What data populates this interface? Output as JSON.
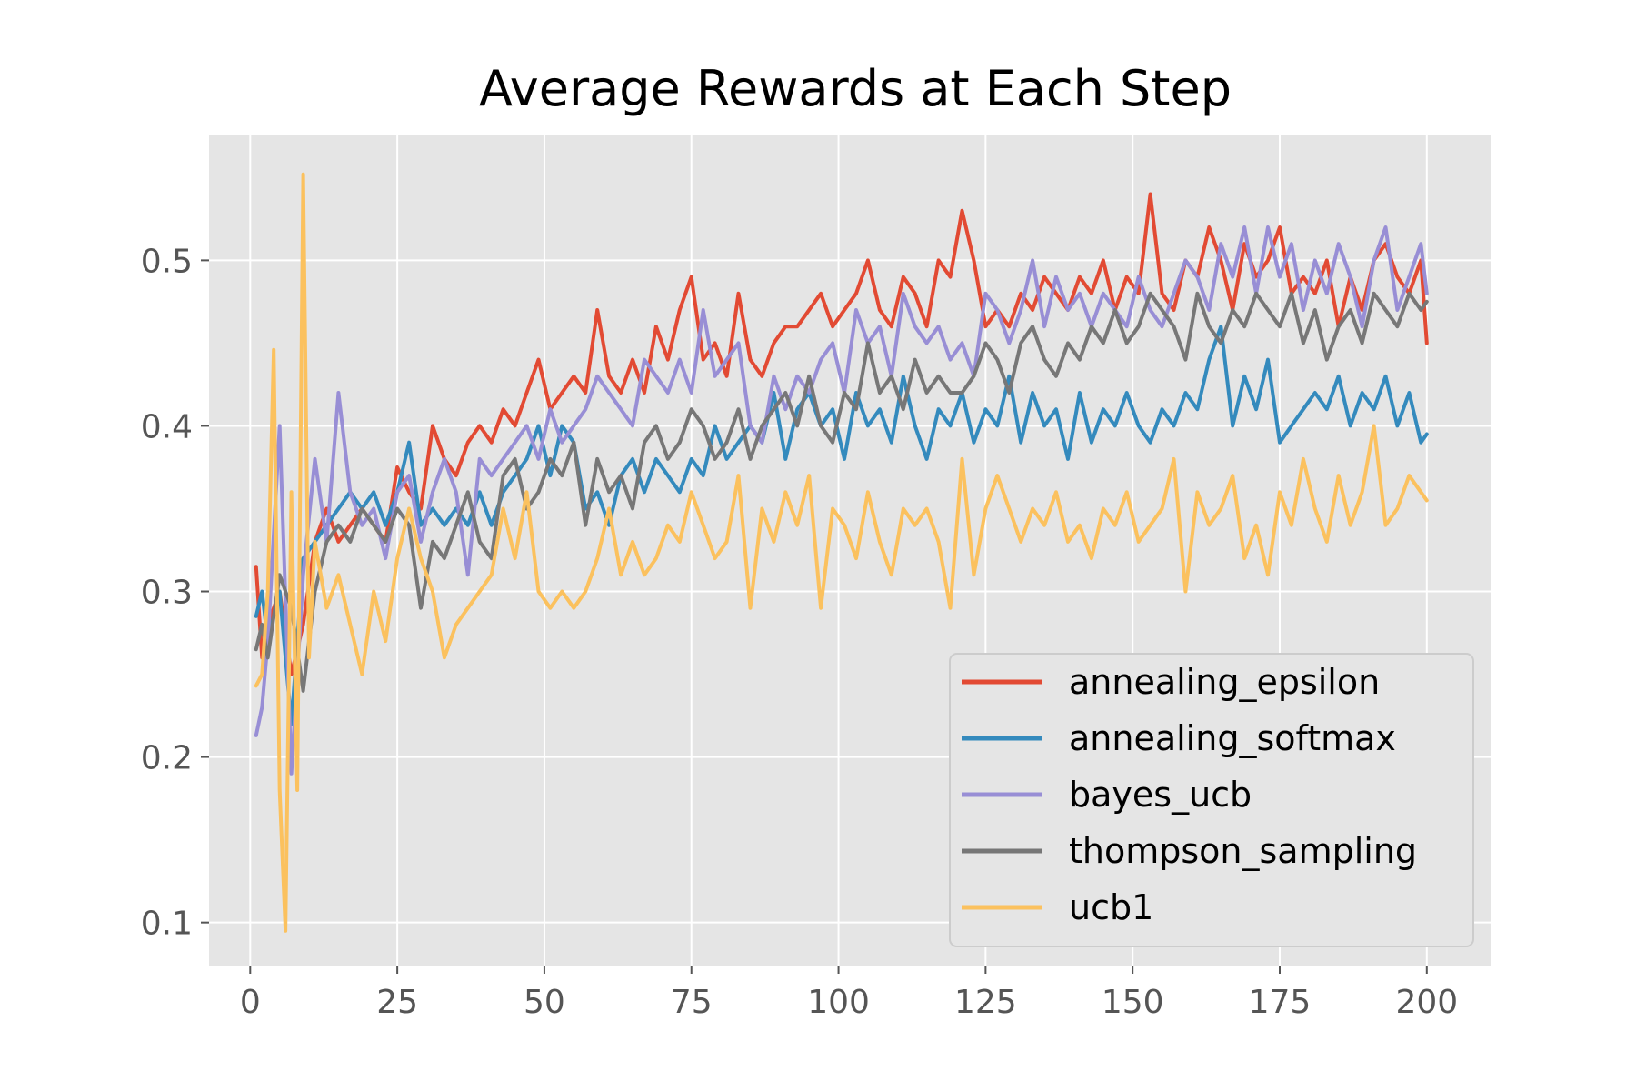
{
  "chart_data": {
    "type": "line",
    "title": "Average Rewards at Each Step",
    "xlabel": "",
    "ylabel": "",
    "xlim": [
      -7,
      211
    ],
    "ylim": [
      0.074,
      0.576
    ],
    "xticks": [
      0,
      25,
      50,
      75,
      100,
      125,
      150,
      175,
      200
    ],
    "yticks": [
      0.1,
      0.2,
      0.3,
      0.4,
      0.5
    ],
    "xtick_labels": [
      "0",
      "25",
      "50",
      "75",
      "100",
      "125",
      "150",
      "175",
      "200"
    ],
    "ytick_labels": [
      "0.1",
      "0.2",
      "0.3",
      "0.4",
      "0.5"
    ],
    "grid": true,
    "legend_position": "lower-right",
    "background": "#e5e5e5",
    "series": [
      {
        "name": "annealing_epsilon",
        "color": "#e24a33",
        "x": [
          1,
          2,
          3,
          5,
          7,
          9,
          11,
          13,
          15,
          17,
          19,
          21,
          23,
          25,
          27,
          29,
          31,
          33,
          35,
          37,
          39,
          41,
          43,
          45,
          47,
          49,
          51,
          53,
          55,
          57,
          59,
          61,
          63,
          65,
          67,
          69,
          71,
          73,
          75,
          77,
          79,
          81,
          83,
          85,
          87,
          89,
          91,
          93,
          95,
          97,
          99,
          101,
          103,
          105,
          107,
          109,
          111,
          113,
          115,
          117,
          119,
          121,
          123,
          125,
          127,
          129,
          131,
          133,
          135,
          137,
          139,
          141,
          143,
          145,
          147,
          149,
          151,
          153,
          155,
          157,
          159,
          161,
          163,
          165,
          167,
          169,
          171,
          173,
          175,
          177,
          179,
          181,
          183,
          185,
          187,
          189,
          191,
          193,
          195,
          197,
          199,
          200
        ],
        "values": [
          0.315,
          0.26,
          0.28,
          0.3,
          0.25,
          0.28,
          0.33,
          0.35,
          0.33,
          0.34,
          0.35,
          0.34,
          0.33,
          0.375,
          0.36,
          0.35,
          0.4,
          0.38,
          0.37,
          0.39,
          0.4,
          0.39,
          0.41,
          0.4,
          0.42,
          0.44,
          0.41,
          0.42,
          0.43,
          0.42,
          0.47,
          0.43,
          0.42,
          0.44,
          0.42,
          0.46,
          0.44,
          0.47,
          0.49,
          0.44,
          0.45,
          0.43,
          0.48,
          0.44,
          0.43,
          0.45,
          0.46,
          0.46,
          0.47,
          0.48,
          0.46,
          0.47,
          0.48,
          0.5,
          0.47,
          0.46,
          0.49,
          0.48,
          0.46,
          0.5,
          0.49,
          0.53,
          0.5,
          0.46,
          0.47,
          0.46,
          0.48,
          0.47,
          0.49,
          0.48,
          0.47,
          0.49,
          0.48,
          0.5,
          0.47,
          0.49,
          0.48,
          0.54,
          0.48,
          0.47,
          0.5,
          0.49,
          0.52,
          0.5,
          0.47,
          0.51,
          0.49,
          0.5,
          0.52,
          0.48,
          0.49,
          0.48,
          0.5,
          0.46,
          0.49,
          0.47,
          0.5,
          0.51,
          0.49,
          0.48,
          0.5,
          0.45
        ]
      },
      {
        "name": "annealing_softmax",
        "color": "#348abd",
        "x": [
          1,
          2,
          3,
          5,
          7,
          9,
          11,
          13,
          15,
          17,
          19,
          21,
          23,
          25,
          27,
          29,
          31,
          33,
          35,
          37,
          39,
          41,
          43,
          45,
          47,
          49,
          51,
          53,
          55,
          57,
          59,
          61,
          63,
          65,
          67,
          69,
          71,
          73,
          75,
          77,
          79,
          81,
          83,
          85,
          87,
          89,
          91,
          93,
          95,
          97,
          99,
          101,
          103,
          105,
          107,
          109,
          111,
          113,
          115,
          117,
          119,
          121,
          123,
          125,
          127,
          129,
          131,
          133,
          135,
          137,
          139,
          141,
          143,
          145,
          147,
          149,
          151,
          153,
          155,
          157,
          159,
          161,
          163,
          165,
          167,
          169,
          171,
          173,
          175,
          177,
          179,
          181,
          183,
          185,
          187,
          189,
          191,
          193,
          195,
          197,
          199,
          200
        ],
        "values": [
          0.285,
          0.3,
          0.27,
          0.3,
          0.22,
          0.32,
          0.33,
          0.34,
          0.35,
          0.36,
          0.35,
          0.36,
          0.34,
          0.36,
          0.39,
          0.34,
          0.35,
          0.34,
          0.35,
          0.34,
          0.36,
          0.34,
          0.36,
          0.37,
          0.38,
          0.4,
          0.37,
          0.4,
          0.39,
          0.35,
          0.36,
          0.34,
          0.37,
          0.38,
          0.36,
          0.38,
          0.37,
          0.36,
          0.38,
          0.37,
          0.4,
          0.38,
          0.39,
          0.4,
          0.39,
          0.42,
          0.38,
          0.41,
          0.42,
          0.4,
          0.41,
          0.38,
          0.42,
          0.4,
          0.41,
          0.39,
          0.43,
          0.4,
          0.38,
          0.41,
          0.4,
          0.42,
          0.39,
          0.41,
          0.4,
          0.43,
          0.39,
          0.42,
          0.4,
          0.41,
          0.38,
          0.42,
          0.39,
          0.41,
          0.4,
          0.42,
          0.4,
          0.39,
          0.41,
          0.4,
          0.42,
          0.41,
          0.44,
          0.46,
          0.4,
          0.43,
          0.41,
          0.44,
          0.39,
          0.4,
          0.41,
          0.42,
          0.41,
          0.43,
          0.4,
          0.42,
          0.41,
          0.43,
          0.4,
          0.42,
          0.39,
          0.395
        ]
      },
      {
        "name": "bayes_ucb",
        "color": "#988ed5",
        "x": [
          1,
          2,
          3,
          5,
          7,
          9,
          11,
          13,
          15,
          17,
          19,
          21,
          23,
          25,
          27,
          29,
          31,
          33,
          35,
          37,
          39,
          41,
          43,
          45,
          47,
          49,
          51,
          53,
          55,
          57,
          59,
          61,
          63,
          65,
          67,
          69,
          71,
          73,
          75,
          77,
          79,
          81,
          83,
          85,
          87,
          89,
          91,
          93,
          95,
          97,
          99,
          101,
          103,
          105,
          107,
          109,
          111,
          113,
          115,
          117,
          119,
          121,
          123,
          125,
          127,
          129,
          131,
          133,
          135,
          137,
          139,
          141,
          143,
          145,
          147,
          149,
          151,
          153,
          155,
          157,
          159,
          161,
          163,
          165,
          167,
          169,
          171,
          173,
          175,
          177,
          179,
          181,
          183,
          185,
          187,
          189,
          191,
          193,
          195,
          197,
          199,
          200
        ],
        "values": [
          0.213,
          0.23,
          0.27,
          0.4,
          0.19,
          0.31,
          0.38,
          0.33,
          0.42,
          0.36,
          0.34,
          0.35,
          0.32,
          0.36,
          0.37,
          0.33,
          0.36,
          0.38,
          0.36,
          0.31,
          0.38,
          0.37,
          0.38,
          0.39,
          0.4,
          0.38,
          0.41,
          0.39,
          0.4,
          0.41,
          0.43,
          0.42,
          0.41,
          0.4,
          0.44,
          0.43,
          0.42,
          0.44,
          0.42,
          0.47,
          0.43,
          0.44,
          0.45,
          0.4,
          0.39,
          0.43,
          0.41,
          0.43,
          0.42,
          0.44,
          0.45,
          0.42,
          0.47,
          0.45,
          0.46,
          0.43,
          0.48,
          0.46,
          0.45,
          0.46,
          0.44,
          0.45,
          0.43,
          0.48,
          0.47,
          0.45,
          0.47,
          0.5,
          0.46,
          0.49,
          0.47,
          0.48,
          0.46,
          0.48,
          0.47,
          0.46,
          0.49,
          0.47,
          0.46,
          0.48,
          0.5,
          0.49,
          0.47,
          0.51,
          0.49,
          0.52,
          0.48,
          0.52,
          0.49,
          0.51,
          0.47,
          0.5,
          0.48,
          0.51,
          0.49,
          0.46,
          0.5,
          0.52,
          0.47,
          0.49,
          0.51,
          0.48
        ]
      },
      {
        "name": "thompson_sampling",
        "color": "#777777",
        "x": [
          1,
          2,
          3,
          5,
          7,
          9,
          11,
          13,
          15,
          17,
          19,
          21,
          23,
          25,
          27,
          29,
          31,
          33,
          35,
          37,
          39,
          41,
          43,
          45,
          47,
          49,
          51,
          53,
          55,
          57,
          59,
          61,
          63,
          65,
          67,
          69,
          71,
          73,
          75,
          77,
          79,
          81,
          83,
          85,
          87,
          89,
          91,
          93,
          95,
          97,
          99,
          101,
          103,
          105,
          107,
          109,
          111,
          113,
          115,
          117,
          119,
          121,
          123,
          125,
          127,
          129,
          131,
          133,
          135,
          137,
          139,
          141,
          143,
          145,
          147,
          149,
          151,
          153,
          155,
          157,
          159,
          161,
          163,
          165,
          167,
          169,
          171,
          173,
          175,
          177,
          179,
          181,
          183,
          185,
          187,
          189,
          191,
          193,
          195,
          197,
          199,
          200
        ],
        "values": [
          0.265,
          0.28,
          0.26,
          0.31,
          0.29,
          0.24,
          0.3,
          0.33,
          0.34,
          0.33,
          0.35,
          0.34,
          0.33,
          0.35,
          0.34,
          0.29,
          0.33,
          0.32,
          0.34,
          0.36,
          0.33,
          0.32,
          0.37,
          0.38,
          0.35,
          0.36,
          0.38,
          0.37,
          0.39,
          0.34,
          0.38,
          0.36,
          0.37,
          0.35,
          0.39,
          0.4,
          0.38,
          0.39,
          0.41,
          0.4,
          0.38,
          0.39,
          0.41,
          0.38,
          0.4,
          0.41,
          0.42,
          0.4,
          0.43,
          0.4,
          0.39,
          0.42,
          0.41,
          0.45,
          0.42,
          0.43,
          0.41,
          0.44,
          0.42,
          0.43,
          0.42,
          0.42,
          0.43,
          0.45,
          0.44,
          0.42,
          0.45,
          0.46,
          0.44,
          0.43,
          0.45,
          0.44,
          0.46,
          0.45,
          0.47,
          0.45,
          0.46,
          0.48,
          0.47,
          0.46,
          0.44,
          0.48,
          0.46,
          0.45,
          0.47,
          0.46,
          0.48,
          0.47,
          0.46,
          0.48,
          0.45,
          0.47,
          0.44,
          0.46,
          0.47,
          0.45,
          0.48,
          0.47,
          0.46,
          0.48,
          0.47,
          0.475
        ]
      },
      {
        "name": "ucb1",
        "color": "#fbc15e",
        "x": [
          1,
          2,
          3,
          4,
          5,
          6,
          7,
          8,
          9,
          10,
          11,
          13,
          15,
          17,
          19,
          21,
          23,
          25,
          27,
          29,
          31,
          33,
          35,
          37,
          39,
          41,
          43,
          45,
          47,
          49,
          51,
          53,
          55,
          57,
          59,
          61,
          63,
          65,
          67,
          69,
          71,
          73,
          75,
          77,
          79,
          81,
          83,
          85,
          87,
          89,
          91,
          93,
          95,
          97,
          99,
          101,
          103,
          105,
          107,
          109,
          111,
          113,
          115,
          117,
          119,
          121,
          123,
          125,
          127,
          129,
          131,
          133,
          135,
          137,
          139,
          141,
          143,
          145,
          147,
          149,
          151,
          153,
          155,
          157,
          159,
          161,
          163,
          165,
          167,
          169,
          171,
          173,
          175,
          177,
          179,
          181,
          183,
          185,
          187,
          189,
          191,
          193,
          195,
          197,
          199,
          200
        ],
        "values": [
          0.243,
          0.25,
          0.3,
          0.446,
          0.18,
          0.095,
          0.36,
          0.18,
          0.552,
          0.26,
          0.33,
          0.29,
          0.31,
          0.28,
          0.25,
          0.3,
          0.27,
          0.32,
          0.35,
          0.32,
          0.3,
          0.26,
          0.28,
          0.29,
          0.3,
          0.31,
          0.35,
          0.32,
          0.36,
          0.3,
          0.29,
          0.3,
          0.29,
          0.3,
          0.32,
          0.35,
          0.31,
          0.33,
          0.31,
          0.32,
          0.34,
          0.33,
          0.36,
          0.34,
          0.32,
          0.33,
          0.37,
          0.29,
          0.35,
          0.33,
          0.36,
          0.34,
          0.37,
          0.29,
          0.35,
          0.34,
          0.32,
          0.36,
          0.33,
          0.31,
          0.35,
          0.34,
          0.35,
          0.33,
          0.29,
          0.38,
          0.31,
          0.35,
          0.37,
          0.35,
          0.33,
          0.35,
          0.34,
          0.36,
          0.33,
          0.34,
          0.32,
          0.35,
          0.34,
          0.36,
          0.33,
          0.34,
          0.35,
          0.38,
          0.3,
          0.36,
          0.34,
          0.35,
          0.37,
          0.32,
          0.34,
          0.31,
          0.36,
          0.34,
          0.38,
          0.35,
          0.33,
          0.37,
          0.34,
          0.36,
          0.4,
          0.34,
          0.35,
          0.37,
          0.36,
          0.355
        ]
      }
    ]
  }
}
